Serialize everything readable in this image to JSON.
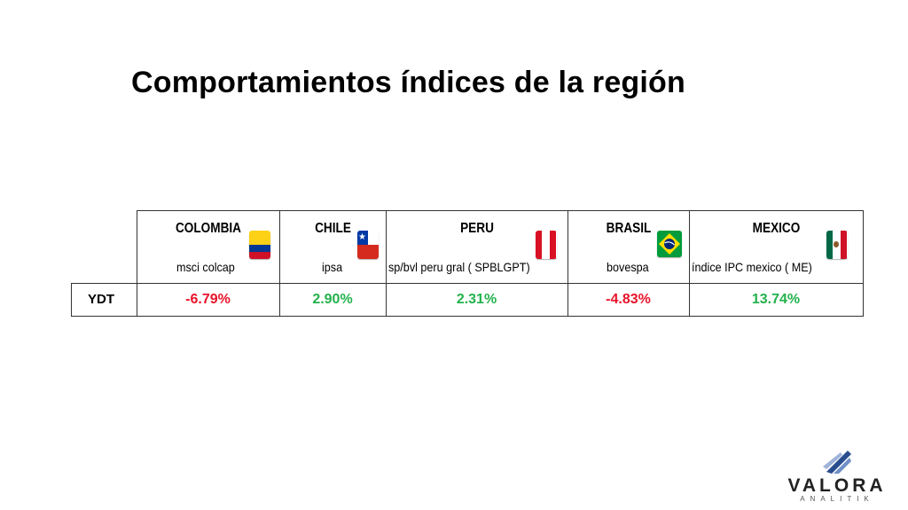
{
  "title": "Comportamientos índices de la región",
  "table": {
    "row_label": "YDT",
    "columns": [
      {
        "country": "COLOMBIA",
        "index": "msci colcap",
        "value": "-6.79%",
        "flag": "colombia-flag-icon"
      },
      {
        "country": "CHILE",
        "index": "ipsa",
        "value": "2.90%",
        "flag": "chile-flag-icon"
      },
      {
        "country": "PERU",
        "index": "sp/bvl peru gral ( SPBLGPT)",
        "value": "2.31%",
        "flag": "peru-flag-icon"
      },
      {
        "country": "BRASIL",
        "index": "bovespa",
        "value": "-4.83%",
        "flag": "brazil-flag-icon"
      },
      {
        "country": "MEXICO",
        "index": "índice IPC  mexico ( ME)",
        "value": "13.74%",
        "flag": "mexico-flag-icon"
      }
    ]
  },
  "colors": {
    "negative": "#e8142a",
    "positive": "#22b24c"
  },
  "logo": {
    "name": "VALORA",
    "sub": "ANALITIK"
  }
}
